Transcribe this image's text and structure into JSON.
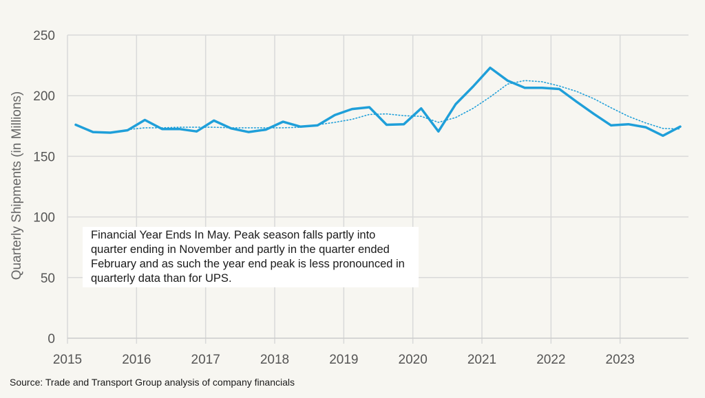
{
  "chart_data": {
    "type": "line",
    "ylabel": "Quarterly Shipments (in Millions)",
    "ylim": [
      0,
      250
    ],
    "yticks": [
      0,
      50,
      100,
      150,
      200,
      250
    ],
    "xlim": [
      2015,
      2023.9
    ],
    "xticks": [
      2015,
      2016,
      2017,
      2018,
      2019,
      2020,
      2021,
      2022,
      2023
    ],
    "grid": true,
    "series": [
      {
        "style": "solid",
        "color": "#1f9fd9",
        "points": [
          [
            2015.12,
            176
          ],
          [
            2015.37,
            170
          ],
          [
            2015.62,
            169.5
          ],
          [
            2015.87,
            171.5
          ],
          [
            2016.12,
            180
          ],
          [
            2016.37,
            172.5
          ],
          [
            2016.62,
            172.5
          ],
          [
            2016.87,
            170.5
          ],
          [
            2017.12,
            179.5
          ],
          [
            2017.37,
            173
          ],
          [
            2017.62,
            170
          ],
          [
            2017.87,
            172
          ],
          [
            2018.12,
            178.5
          ],
          [
            2018.37,
            174.5
          ],
          [
            2018.62,
            175.5
          ],
          [
            2018.87,
            184
          ],
          [
            2019.12,
            189
          ],
          [
            2019.37,
            190.5
          ],
          [
            2019.62,
            176
          ],
          [
            2019.87,
            176.5
          ],
          [
            2020.12,
            189.5
          ],
          [
            2020.37,
            170.5
          ],
          [
            2020.62,
            193
          ],
          [
            2020.87,
            207.5
          ],
          [
            2021.12,
            223
          ],
          [
            2021.37,
            212.5
          ],
          [
            2021.62,
            206.5
          ],
          [
            2021.87,
            206.5
          ],
          [
            2022.12,
            205.5
          ],
          [
            2022.37,
            195
          ],
          [
            2022.62,
            185
          ],
          [
            2022.87,
            175.5
          ],
          [
            2023.12,
            176.5
          ],
          [
            2023.37,
            174
          ],
          [
            2023.62,
            167
          ],
          [
            2023.87,
            174.5
          ]
        ]
      },
      {
        "style": "dotted",
        "color": "#1f9fd9",
        "points": [
          [
            2015.87,
            172
          ],
          [
            2016.12,
            173.5
          ],
          [
            2016.37,
            173.5
          ],
          [
            2016.62,
            174
          ],
          [
            2016.87,
            174
          ],
          [
            2017.12,
            174
          ],
          [
            2017.37,
            173.5
          ],
          [
            2017.62,
            173.5
          ],
          [
            2017.87,
            173.5
          ],
          [
            2018.12,
            173.5
          ],
          [
            2018.37,
            174
          ],
          [
            2018.62,
            176
          ],
          [
            2018.87,
            178
          ],
          [
            2019.12,
            180.5
          ],
          [
            2019.37,
            184.5
          ],
          [
            2019.62,
            185
          ],
          [
            2019.87,
            183.5
          ],
          [
            2020.12,
            183
          ],
          [
            2020.37,
            178
          ],
          [
            2020.62,
            182
          ],
          [
            2020.87,
            189.5
          ],
          [
            2021.12,
            199
          ],
          [
            2021.37,
            209.5
          ],
          [
            2021.62,
            212.5
          ],
          [
            2021.87,
            211.5
          ],
          [
            2022.12,
            208
          ],
          [
            2022.37,
            203.5
          ],
          [
            2022.62,
            197.5
          ],
          [
            2022.87,
            190
          ],
          [
            2023.12,
            183
          ],
          [
            2023.37,
            177.5
          ],
          [
            2023.62,
            173
          ],
          [
            2023.87,
            172.5
          ]
        ]
      }
    ]
  },
  "annotation": "Financial Year Ends In May. Peak season falls partly into quarter ending in November and partly in the quarter ended February and as such the year end peak is less pronounced in quarterly data than for UPS.",
  "source": "Source: Trade and Transport Group analysis of company financials"
}
